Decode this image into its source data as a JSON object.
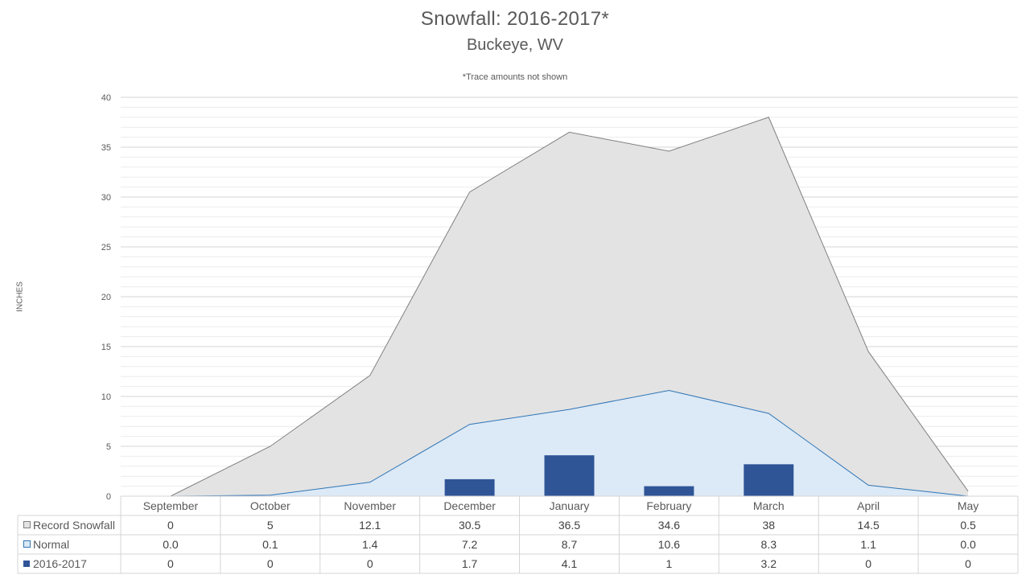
{
  "chart_data": {
    "type": "area",
    "title": "Snowfall: 2016-2017*",
    "subtitle": "Buckeye, WV",
    "note": "*Trace amounts not shown",
    "ylabel": "INCHES",
    "ylim": [
      0,
      40
    ],
    "yticks": [
      "0",
      "5",
      "10",
      "15",
      "20",
      "25",
      "30",
      "35",
      "40"
    ],
    "grid": true,
    "categories": [
      "September",
      "October",
      "November",
      "December",
      "January",
      "February",
      "March",
      "April",
      "May"
    ],
    "series": [
      {
        "name": "Record Snowfall",
        "kind": "area",
        "color": "#e3e3e3",
        "line_color": "#808080",
        "values": [
          0,
          5,
          12.1,
          30.5,
          36.5,
          34.6,
          38,
          14.5,
          0.5
        ],
        "table_values": [
          "0",
          "5",
          "12.1",
          "30.5",
          "36.5",
          "34.6",
          "38",
          "14.5",
          "0.5"
        ]
      },
      {
        "name": "Normal",
        "kind": "area",
        "color": "#dce9f6",
        "line_color": "#2e75b6",
        "values": [
          0.0,
          0.1,
          1.4,
          7.2,
          8.7,
          10.6,
          8.3,
          1.1,
          0.0
        ],
        "table_values": [
          "0.0",
          "0.1",
          "1.4",
          "7.2",
          "8.7",
          "10.6",
          "8.3",
          "1.1",
          "0.0"
        ]
      },
      {
        "name": "2016-2017",
        "kind": "bar",
        "color": "#2f5597",
        "line_color": "#2f5597",
        "values": [
          0,
          0,
          0,
          1.7,
          4.1,
          1,
          3.2,
          0,
          0
        ],
        "table_values": [
          "0",
          "0",
          "0",
          "1.7",
          "4.1",
          "1",
          "3.2",
          "0",
          "0"
        ]
      }
    ]
  }
}
